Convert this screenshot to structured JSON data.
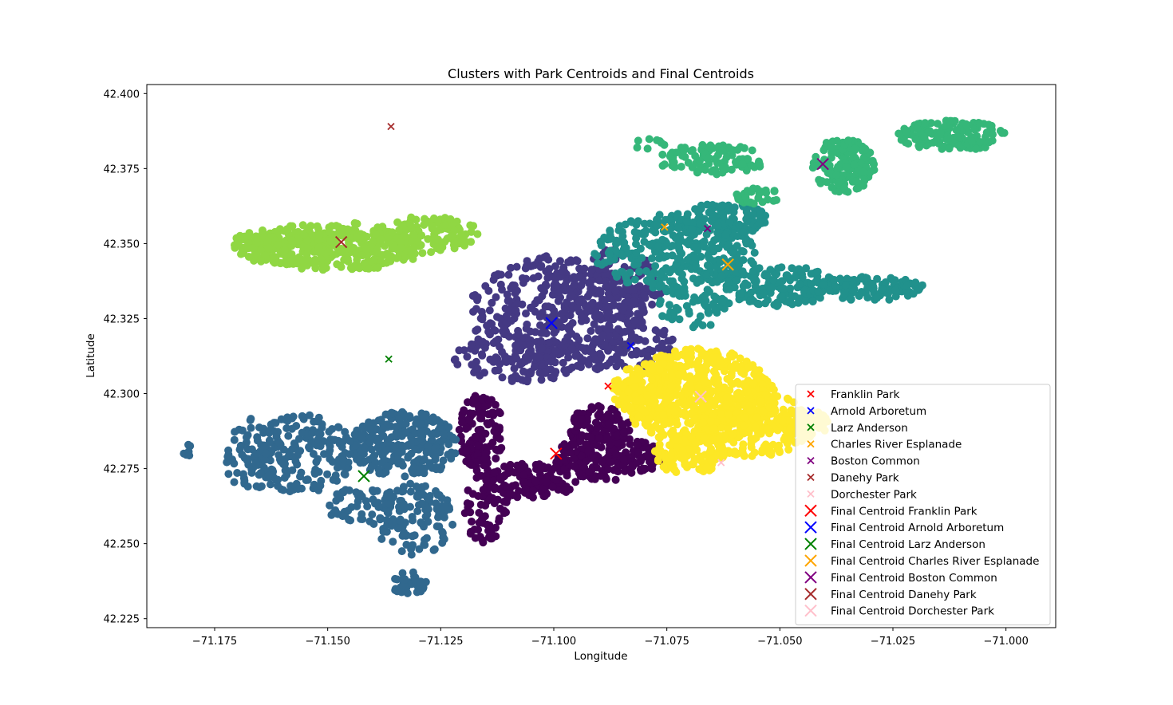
{
  "chart_data": {
    "type": "scatter",
    "title": "Clusters with Park Centroids and Final Centroids",
    "xlabel": "Longitude",
    "ylabel": "Latitude",
    "xlim": [
      -71.19,
      -70.989
    ],
    "ylim": [
      42.222,
      42.403
    ],
    "xticks": [
      -71.175,
      -71.15,
      -71.125,
      -71.1,
      -71.075,
      -71.05,
      -71.025,
      -71.0
    ],
    "xtick_labels": [
      "−71.175",
      "−71.150",
      "−71.125",
      "−71.100",
      "−71.075",
      "−71.050",
      "−71.025",
      "−71.000"
    ],
    "yticks": [
      42.225,
      42.25,
      42.275,
      42.3,
      42.325,
      42.35,
      42.375,
      42.4
    ],
    "ytick_labels": [
      "42.225",
      "42.250",
      "42.275",
      "42.300",
      "42.325",
      "42.350",
      "42.375",
      "42.400"
    ],
    "grid": false,
    "legend_position": "lower-right",
    "clusters": [
      {
        "color": "#440154",
        "regions": [
          {
            "cx": -71.116,
            "cy": 42.287,
            "rx": 0.005,
            "ry": 0.013,
            "n": 120
          },
          {
            "cx": -71.115,
            "cy": 42.262,
            "rx": 0.005,
            "ry": 0.012,
            "n": 60
          },
          {
            "cx": -71.105,
            "cy": 42.271,
            "rx": 0.01,
            "ry": 0.006,
            "n": 120
          },
          {
            "cx": -71.088,
            "cy": 42.279,
            "rx": 0.012,
            "ry": 0.008,
            "n": 200
          },
          {
            "cx": -71.09,
            "cy": 42.289,
            "rx": 0.007,
            "ry": 0.007,
            "n": 90
          }
        ]
      },
      {
        "color": "#443983",
        "regions": [
          {
            "cx": -71.099,
            "cy": 42.326,
            "rx": 0.02,
            "ry": 0.02,
            "n": 380
          },
          {
            "cx": -71.107,
            "cy": 42.312,
            "rx": 0.015,
            "ry": 0.008,
            "n": 110
          },
          {
            "cx": -71.088,
            "cy": 42.336,
            "rx": 0.012,
            "ry": 0.012,
            "n": 150
          },
          {
            "cx": -71.083,
            "cy": 42.316,
            "rx": 0.01,
            "ry": 0.009,
            "n": 90
          }
        ]
      },
      {
        "color": "#31688e",
        "regions": [
          {
            "cx": -71.133,
            "cy": 42.283,
            "rx": 0.012,
            "ry": 0.011,
            "n": 260
          },
          {
            "cx": -71.156,
            "cy": 42.28,
            "rx": 0.012,
            "ry": 0.013,
            "n": 180
          },
          {
            "cx": -71.167,
            "cy": 42.279,
            "rx": 0.006,
            "ry": 0.013,
            "n": 60
          },
          {
            "cx": -71.131,
            "cy": 42.258,
            "rx": 0.009,
            "ry": 0.012,
            "n": 120
          },
          {
            "cx": -71.132,
            "cy": 42.237,
            "rx": 0.004,
            "ry": 0.004,
            "n": 40
          },
          {
            "cx": -71.143,
            "cy": 42.263,
            "rx": 0.008,
            "ry": 0.006,
            "n": 50
          },
          {
            "cx": -71.181,
            "cy": 42.281,
            "rx": 0.001,
            "ry": 0.002,
            "n": 6
          }
        ]
      },
      {
        "color": "#21918c",
        "regions": [
          {
            "cx": -71.073,
            "cy": 42.347,
            "rx": 0.018,
            "ry": 0.013,
            "n": 330
          },
          {
            "cx": -71.062,
            "cy": 42.358,
            "rx": 0.009,
            "ry": 0.006,
            "n": 110
          },
          {
            "cx": -71.05,
            "cy": 42.336,
            "rx": 0.012,
            "ry": 0.007,
            "n": 160
          },
          {
            "cx": -71.03,
            "cy": 42.335,
            "rx": 0.012,
            "ry": 0.004,
            "n": 120
          },
          {
            "cx": -71.069,
            "cy": 42.329,
            "rx": 0.008,
            "ry": 0.007,
            "n": 60
          }
        ]
      },
      {
        "color": "#35b779",
        "regions": [
          {
            "cx": -71.065,
            "cy": 42.378,
            "rx": 0.012,
            "ry": 0.005,
            "n": 100
          },
          {
            "cx": -71.036,
            "cy": 42.376,
            "rx": 0.007,
            "ry": 0.009,
            "n": 140
          },
          {
            "cx": -71.012,
            "cy": 42.386,
            "rx": 0.012,
            "ry": 0.005,
            "n": 130
          },
          {
            "cx": -71.055,
            "cy": 42.366,
            "rx": 0.005,
            "ry": 0.003,
            "n": 30
          },
          {
            "cx": -71.079,
            "cy": 42.383,
            "rx": 0.004,
            "ry": 0.002,
            "n": 8
          }
        ]
      },
      {
        "color": "#90d743",
        "regions": [
          {
            "cx": -71.148,
            "cy": 42.349,
            "rx": 0.02,
            "ry": 0.008,
            "n": 320
          },
          {
            "cx": -71.128,
            "cy": 42.353,
            "rx": 0.012,
            "ry": 0.006,
            "n": 110
          },
          {
            "cx": -71.16,
            "cy": 42.349,
            "rx": 0.012,
            "ry": 0.006,
            "n": 100
          }
        ]
      },
      {
        "color": "#fde725",
        "regions": [
          {
            "cx": -71.068,
            "cy": 42.299,
            "rx": 0.017,
            "ry": 0.016,
            "n": 520
          },
          {
            "cx": -71.056,
            "cy": 42.29,
            "rx": 0.013,
            "ry": 0.011,
            "n": 240
          },
          {
            "cx": -71.078,
            "cy": 42.301,
            "rx": 0.009,
            "ry": 0.01,
            "n": 140
          },
          {
            "cx": -71.07,
            "cy": 42.28,
            "rx": 0.008,
            "ry": 0.007,
            "n": 120
          },
          {
            "cx": -71.045,
            "cy": 42.29,
            "rx": 0.006,
            "ry": 0.005,
            "n": 60
          }
        ]
      }
    ],
    "park_centroids": [
      {
        "name": "Franklin Park",
        "color": "#ff0000",
        "x": -71.088,
        "y": 42.3025
      },
      {
        "name": "Arnold Arboretum",
        "color": "#0000ff",
        "x": -71.083,
        "y": 42.316
      },
      {
        "name": "Larz Anderson",
        "color": "#008000",
        "x": -71.1365,
        "y": 42.3115
      },
      {
        "name": "Charles River Esplanade",
        "color": "#ffa500",
        "x": -71.0755,
        "y": 42.3555
      },
      {
        "name": "Boston Common",
        "color": "#800080",
        "x": -71.066,
        "y": 42.355
      },
      {
        "name": "Danehy Park",
        "color": "#a52a2a",
        "x": -71.136,
        "y": 42.389
      },
      {
        "name": "Dorchester Park",
        "color": "#ffc0cb",
        "x": -71.063,
        "y": 42.277
      }
    ],
    "final_centroids": [
      {
        "name": "Final Centroid Franklin Park",
        "color": "#ff0000",
        "x": -71.0995,
        "y": 42.28
      },
      {
        "name": "Final Centroid Arnold Arboretum",
        "color": "#0000ff",
        "x": -71.1005,
        "y": 42.3235
      },
      {
        "name": "Final Centroid Larz Anderson",
        "color": "#008000",
        "x": -71.142,
        "y": 42.2725
      },
      {
        "name": "Final Centroid Charles River Esplanade",
        "color": "#ffa500",
        "x": -71.0615,
        "y": 42.343
      },
      {
        "name": "Final Centroid Boston Common",
        "color": "#800080",
        "x": -71.0405,
        "y": 42.3765
      },
      {
        "name": "Final Centroid Danehy Park",
        "color": "#a52a2a",
        "x": -71.147,
        "y": 42.3505
      },
      {
        "name": "Final Centroid Dorchester Park",
        "color": "#ffc0cb",
        "x": -71.0675,
        "y": 42.299
      }
    ]
  }
}
